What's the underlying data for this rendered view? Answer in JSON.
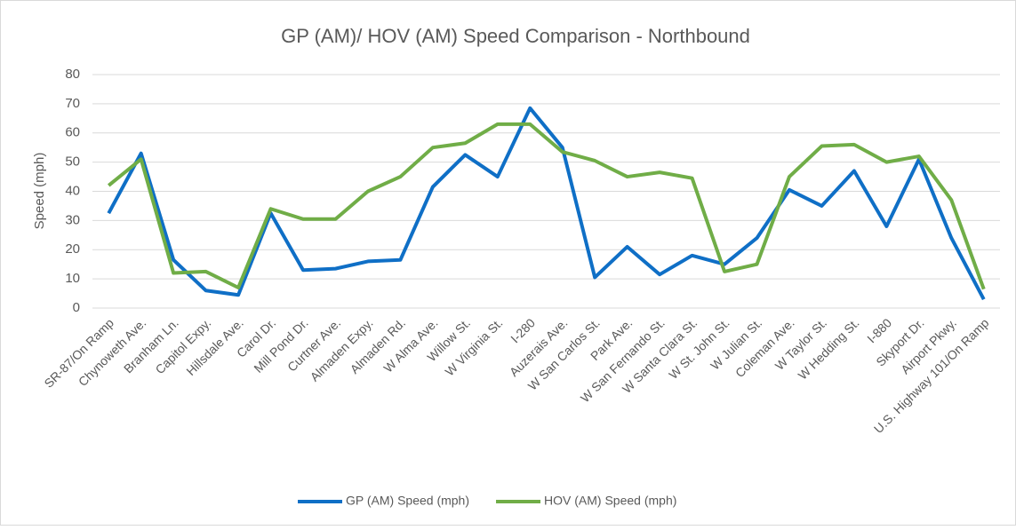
{
  "chart_data": {
    "type": "line",
    "title": "GP (AM)/ HOV (AM) Speed Comparison - Northbound",
    "y_label": "Speed (mph)",
    "categories": [
      "SR-87/On Ramp",
      "Chynoweth Ave.",
      "Branham Ln.",
      "Capitol Expy.",
      "Hillsdale Ave.",
      "Carol Dr.",
      "Mill Pond Dr.",
      "Curtner Ave.",
      "Almaden Expy.",
      "Almaden Rd.",
      "W Alma Ave.",
      "Willow St.",
      "W Virginia St.",
      "I-280",
      "Auzerais Ave.",
      "W San Carlos St.",
      "Park Ave.",
      "W San Fernando St.",
      "W Santa Clara St.",
      "W St. John St.",
      "W Julian St.",
      "Coleman Ave.",
      "W Taylor St.",
      "W Hedding St.",
      "I-880",
      "Skyport Dr.",
      "Airport Pkwy.",
      "U.S. Highway 101/On Ramp"
    ],
    "series": [
      {
        "name": "GP (AM) Speed (mph)",
        "color": "#0f6fc6",
        "values": [
          32.5,
          53,
          16.5,
          6,
          4.5,
          32.5,
          13,
          13.5,
          16,
          16.5,
          41.5,
          52.5,
          45,
          68.5,
          55,
          10.5,
          21,
          11.5,
          18,
          15,
          24,
          40.5,
          35,
          47,
          28,
          51,
          24,
          3
        ]
      },
      {
        "name": "HOV (AM) Speed (mph)",
        "color": "#70ad47",
        "values": [
          42,
          51,
          12,
          12.5,
          7,
          34,
          30.5,
          30.5,
          40,
          45,
          55,
          56.5,
          63,
          63,
          53.5,
          50.5,
          45,
          46.5,
          44.5,
          12.5,
          15,
          45,
          55.5,
          56,
          50,
          52,
          37,
          6.5
        ]
      }
    ],
    "ylim": [
      0,
      80
    ],
    "yticks": [
      0,
      10,
      20,
      30,
      40,
      50,
      60,
      70,
      80
    ],
    "grid": true,
    "legend": "bottom"
  }
}
